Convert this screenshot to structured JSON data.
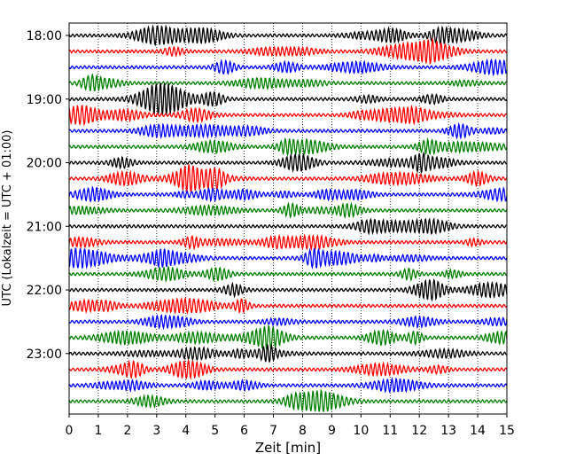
{
  "chart_data": {
    "type": "line",
    "title": "",
    "xlabel": "Zeit  [min]",
    "ylabel": "UTC (Lokalzeit = UTC + 01:00)",
    "xlim": [
      0,
      15
    ],
    "x_ticks": [
      0,
      1,
      2,
      3,
      4,
      5,
      6,
      7,
      8,
      9,
      10,
      11,
      12,
      13,
      14,
      15
    ],
    "x_tick_labels": [
      "0",
      "1",
      "2",
      "3",
      "4",
      "5",
      "6",
      "7",
      "8",
      "9",
      "10",
      "11",
      "12",
      "13",
      "14",
      "15"
    ],
    "y_tick_labels": [
      "18:00",
      "19:00",
      "20:00",
      "21:00",
      "22:00",
      "23:00"
    ],
    "traces_per_hour": 4,
    "minutes_per_trace": 15,
    "n_traces": 24,
    "vertical_grid": "dotted",
    "line_colors": [
      "#000000",
      "#ff0000",
      "#0000ff",
      "#008000"
    ]
  }
}
